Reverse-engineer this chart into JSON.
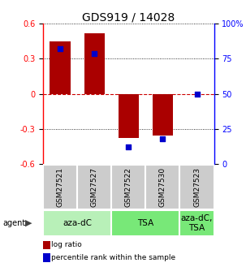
{
  "title": "GDS919 / 14028",
  "samples": [
    "GSM27521",
    "GSM27527",
    "GSM27522",
    "GSM27530",
    "GSM27523"
  ],
  "log_ratios": [
    0.45,
    0.52,
    -0.38,
    -0.36,
    0.0
  ],
  "percentile_ranks": [
    0.82,
    0.79,
    0.12,
    0.18,
    0.5
  ],
  "agents": [
    {
      "label": "aza-dC",
      "span": [
        0,
        2
      ],
      "color": "#b8f0b8"
    },
    {
      "label": "TSA",
      "span": [
        2,
        4
      ],
      "color": "#78e878"
    },
    {
      "label": "aza-dC,\nTSA",
      "span": [
        4,
        5
      ],
      "color": "#78e878"
    }
  ],
  "ylim": [
    -0.6,
    0.6
  ],
  "yticks_left": [
    -0.6,
    -0.3,
    0.0,
    0.3,
    0.6
  ],
  "yticks_right": [
    0,
    25,
    50,
    75,
    100
  ],
  "bar_color": "#aa0000",
  "dot_color": "#0000cc",
  "bar_width": 0.6,
  "dot_size": 22,
  "grid_color": "#000000",
  "zero_line_color": "#cc0000",
  "title_fontsize": 10,
  "tick_fontsize": 7,
  "legend_fontsize": 6.5,
  "sample_label_fontsize": 6.5,
  "agent_label_fontsize": 7.5
}
